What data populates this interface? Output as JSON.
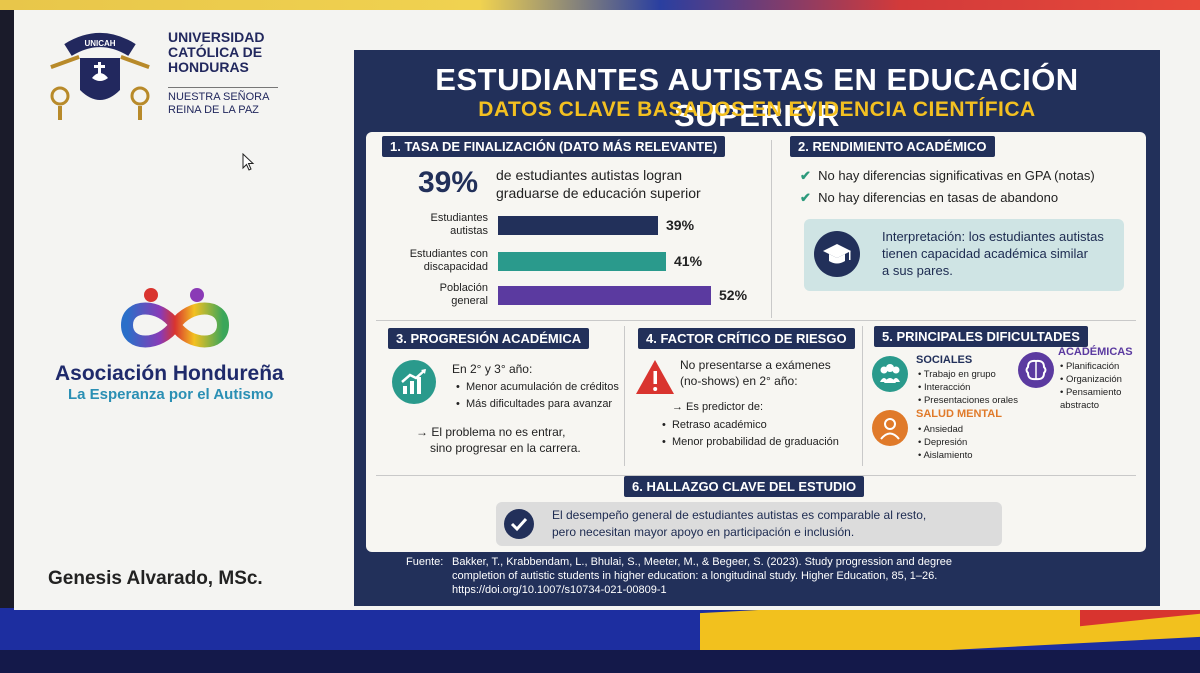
{
  "university": {
    "name_lines": [
      "UNIVERSIDAD",
      "CATÓLICA DE",
      "HONDURAS"
    ],
    "motto_lines": [
      "NUESTRA SEÑORA",
      "REINA DE LA PAZ"
    ],
    "logo_text": "UNICAH"
  },
  "association": {
    "name": "Asociación Hondureña",
    "tagline": "La Esperanza por el Autismo"
  },
  "presenter": "Genesis Alvarado, MSc.",
  "infographic": {
    "title": "ESTUDIANTES AUTISTAS EN EDUCACIÓN SUPERIOR",
    "subtitle": "DATOS CLAVE BASADOS EN EVIDENCIA CIENTÍFICA",
    "s1": {
      "header": "1. TASA DE FINALIZACIÓN (DATO MÁS RELEVANTE)",
      "big_value": "39%",
      "big_text_1": "de estudiantes autistas logran",
      "big_text_2": "graduarse de educación superior",
      "bars": [
        {
          "label_1": "Estudiantes",
          "label_2": "autistas",
          "value": 39,
          "value_text": "39%",
          "color": "#22305a"
        },
        {
          "label_1": "Estudiantes con",
          "label_2": "discapacidad",
          "value": 41,
          "value_text": "41%",
          "color": "#2a9a8c"
        },
        {
          "label_1": "Población",
          "label_2": "general",
          "value": 52,
          "value_text": "52%",
          "color": "#5b3aa0"
        }
      ]
    },
    "s2": {
      "header": "2. RENDIMIENTO ACADÉMICO",
      "items": [
        "No hay diferencias significativas en GPA (notas)",
        "No hay diferencias en tasas de abandono"
      ],
      "interpretation_lines": [
        "Interpretación: los estudiantes autistas",
        "tienen capacidad académica similar",
        "a sus pares."
      ]
    },
    "s3": {
      "header": "3. PROGRESIÓN ACADÉMICA",
      "lead": "En 2° y 3° año:",
      "bullets": [
        "Menor acumulación de créditos",
        "Más dificultades para avanzar"
      ],
      "note_1": "→ El problema no es entrar,",
      "note_2": "sino progresar en la carrera."
    },
    "s4": {
      "header": "4. FACTOR CRÍTICO DE RIESGO",
      "lead_1": "No presentarse a exámenes",
      "lead_2": "(no-shows) en 2° año:",
      "predictor": "→ Es predictor de:",
      "bullets": [
        "Retraso académico",
        "Menor probabilidad de graduación"
      ]
    },
    "s5": {
      "header": "5. PRINCIPALES DIFICULTADES",
      "sociales": {
        "title": "SOCIALES",
        "items": [
          "Trabajo en grupo",
          "Interacción",
          "Presentaciones orales"
        ]
      },
      "academicas": {
        "title": "ACADÉMICAS",
        "items": [
          "Planificación",
          "Organización",
          "Pensamiento abstracto"
        ]
      },
      "salud": {
        "title": "SALUD MENTAL",
        "items": [
          "Ansiedad",
          "Depresión",
          "Aislamiento"
        ]
      }
    },
    "s6": {
      "header": "6. HALLAZGO CLAVE DEL ESTUDIO",
      "text_1": "El desempeño general de estudiantes autistas es comparable al resto,",
      "text_2": "pero necesitan mayor apoyo en participación e inclusión."
    },
    "source": {
      "label": "Fuente:",
      "line_1": "Bakker, T., Krabbendam, L., Bhulai, S., Meeter, M., & Begeer, S. (2023). Study progression and degree",
      "line_2": "completion of autistic students in higher education: a longitudinal study. Higher Education, 85, 1–26.",
      "line_3": "https://doi.org/10.1007/s10734-021-00809-1"
    }
  },
  "colors": {
    "navy": "#22305a",
    "gold": "#f3c021",
    "teal": "#2a9a8c",
    "purple": "#5b3aa0",
    "red": "#d9342f",
    "orange": "#e07a2a"
  }
}
